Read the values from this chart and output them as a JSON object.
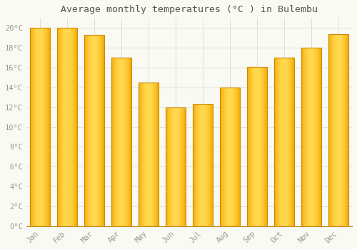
{
  "title": "Average monthly temperatures (°C ) in Bulembu",
  "months": [
    "Jan",
    "Feb",
    "Mar",
    "Apr",
    "May",
    "Jun",
    "Jul",
    "Aug",
    "Sep",
    "Oct",
    "Nov",
    "Dec"
  ],
  "values": [
    20.0,
    20.0,
    19.3,
    17.0,
    14.5,
    12.0,
    12.3,
    14.0,
    16.1,
    17.0,
    18.0,
    19.4
  ],
  "bar_color_left": "#F5A800",
  "bar_color_center": "#FFD84D",
  "bar_color_right": "#F5A800",
  "bar_edge_color": "#CC8800",
  "background_color": "#FAFAF5",
  "grid_color": "#DDDDCC",
  "text_color": "#999988",
  "title_color": "#555544",
  "ylim": [
    0,
    21
  ],
  "yticks": [
    0,
    2,
    4,
    6,
    8,
    10,
    12,
    14,
    16,
    18,
    20
  ],
  "ytick_labels": [
    "0°C",
    "2°C",
    "4°C",
    "6°C",
    "8°C",
    "10°C",
    "12°C",
    "14°C",
    "16°C",
    "18°C",
    "20°C"
  ],
  "bar_width": 0.75,
  "n_gradient_steps": 50
}
